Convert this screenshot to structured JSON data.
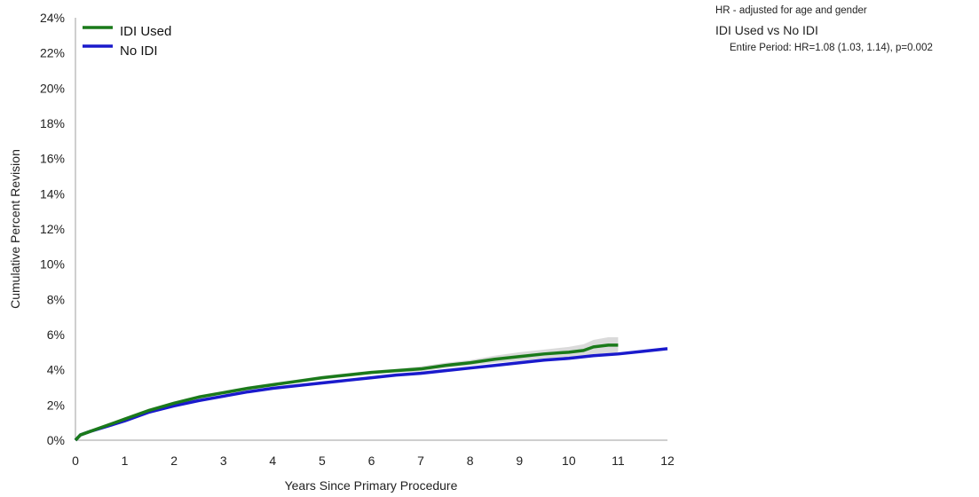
{
  "notes": {
    "adjustment": "HR - adjusted for age and gender",
    "comparison": "IDI Used vs No IDI",
    "hr_result": "Entire Period: HR=1.08 (1.03, 1.14), p=0.002"
  },
  "chart_data": {
    "type": "line",
    "xlabel": "Years Since Primary Procedure",
    "ylabel": "Cumulative Percent Revision",
    "xlim": [
      0,
      12
    ],
    "ylim": [
      0,
      24
    ],
    "x_ticks": [
      "0",
      "1",
      "2",
      "3",
      "4",
      "5",
      "6",
      "7",
      "8",
      "9",
      "10",
      "11",
      "12"
    ],
    "y_ticks": [
      "0%",
      "2%",
      "4%",
      "6%",
      "8%",
      "10%",
      "12%",
      "14%",
      "16%",
      "18%",
      "20%",
      "22%",
      "24%"
    ],
    "grid": false,
    "legend_position": "top-left",
    "series": [
      {
        "name": "IDI Used",
        "color": "#1a7a1a",
        "x": [
          0,
          0.1,
          0.3,
          0.6,
          1,
          1.5,
          2,
          2.5,
          3,
          3.5,
          4,
          4.5,
          5,
          5.5,
          6,
          6.5,
          7,
          7.5,
          8,
          8.5,
          9,
          9.5,
          10,
          10.3,
          10.5,
          10.8,
          11
        ],
        "y": [
          0,
          0.3,
          0.5,
          0.8,
          1.2,
          1.7,
          2.1,
          2.45,
          2.7,
          2.95,
          3.15,
          3.35,
          3.55,
          3.7,
          3.85,
          3.95,
          4.05,
          4.25,
          4.4,
          4.6,
          4.75,
          4.9,
          5.0,
          5.1,
          5.3,
          5.4,
          5.4
        ],
        "ci_upper": [
          0.1,
          0.4,
          0.6,
          0.9,
          1.3,
          1.8,
          2.2,
          2.55,
          2.8,
          3.05,
          3.25,
          3.45,
          3.65,
          3.8,
          3.95,
          4.05,
          4.2,
          4.4,
          4.55,
          4.8,
          5.0,
          5.15,
          5.3,
          5.45,
          5.7,
          5.85,
          5.85
        ],
        "ci_lower": [
          0,
          0.2,
          0.4,
          0.7,
          1.1,
          1.6,
          2.0,
          2.35,
          2.6,
          2.85,
          3.05,
          3.25,
          3.45,
          3.6,
          3.75,
          3.85,
          3.9,
          4.1,
          4.25,
          4.4,
          4.5,
          4.65,
          4.7,
          4.75,
          4.9,
          4.95,
          4.95
        ]
      },
      {
        "name": "No IDI",
        "color": "#1a1acc",
        "x": [
          0,
          0.1,
          0.3,
          0.6,
          1,
          1.5,
          2,
          2.5,
          3,
          3.5,
          4,
          4.5,
          5,
          5.5,
          6,
          6.5,
          7,
          7.5,
          8,
          8.5,
          9,
          9.5,
          10,
          10.5,
          11,
          11.5,
          12
        ],
        "y": [
          0,
          0.3,
          0.5,
          0.75,
          1.1,
          1.6,
          1.95,
          2.25,
          2.5,
          2.75,
          2.95,
          3.1,
          3.25,
          3.4,
          3.55,
          3.7,
          3.8,
          3.95,
          4.1,
          4.25,
          4.4,
          4.55,
          4.65,
          4.8,
          4.9,
          5.05,
          5.2
        ]
      }
    ]
  }
}
